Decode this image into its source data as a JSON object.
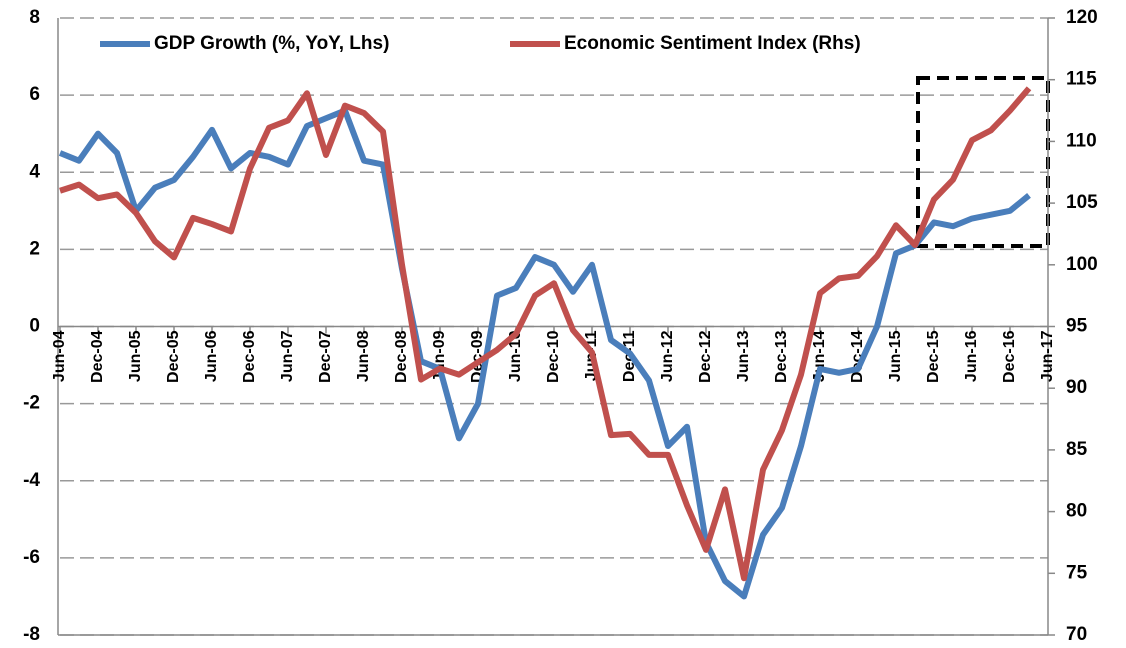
{
  "chart_data": {
    "type": "line",
    "categories": [
      "Jun-04",
      null,
      "Dec-04",
      null,
      "Jun-05",
      null,
      "Dec-05",
      null,
      "Jun-06",
      null,
      "Dec-06",
      null,
      "Jun-07",
      null,
      "Dec-07",
      null,
      "Jun-08",
      null,
      "Dec-08",
      null,
      "Jun-09",
      null,
      "Dec-09",
      null,
      "Jun-10",
      null,
      "Dec-10",
      null,
      "Jun-11",
      null,
      "Dec-11",
      null,
      "Jun-12",
      null,
      "Dec-12",
      null,
      "Jun-13",
      null,
      "Dec-13",
      null,
      "Jun-14",
      null,
      "Dec-14",
      null,
      "Jun-15",
      null,
      "Dec-15",
      null,
      "Jun-16",
      null,
      "Dec-16",
      null,
      "Jun-17"
    ],
    "series": [
      {
        "name": "GDP Growth (%, YoY, Lhs)",
        "color": "#4a7ebb",
        "values": [
          4.5,
          4.3,
          5.0,
          4.5,
          3.0,
          3.6,
          3.8,
          4.4,
          5.1,
          4.1,
          4.5,
          4.4,
          4.2,
          5.2,
          5.4,
          5.6,
          4.3,
          4.2,
          1.5,
          -0.9,
          -1.1,
          -2.9,
          -2.0,
          0.8,
          1.0,
          1.8,
          1.6,
          0.9,
          1.6,
          -0.35,
          -0.7,
          -1.4,
          -3.1,
          -2.6,
          -5.6,
          -6.6,
          -7.0,
          -5.4,
          -4.7,
          -3.1,
          -1.1,
          -1.2,
          -1.1,
          0.0,
          1.9,
          2.1,
          2.7,
          2.6,
          2.8,
          2.9,
          3.0,
          3.4,
          null
        ]
      },
      {
        "name": "Economic Sentiment Index (Rhs)",
        "color": "#c0504d",
        "axis": "y2",
        "values": [
          106.0,
          106.5,
          105.4,
          105.7,
          104.2,
          101.9,
          100.6,
          103.8,
          103.3,
          102.7,
          107.8,
          111.1,
          111.7,
          113.9,
          108.9,
          112.9,
          112.3,
          110.8,
          100.0,
          90.7,
          91.6,
          91.1,
          92.1,
          93.1,
          94.4,
          97.5,
          98.5,
          94.7,
          92.9,
          86.2,
          86.3,
          84.6,
          84.6,
          80.5,
          76.9,
          81.8,
          74.6,
          83.4,
          86.6,
          91.1,
          97.7,
          98.9,
          99.1,
          100.7,
          103.2,
          101.6,
          105.3,
          106.9,
          110.1,
          110.9,
          112.5,
          114.3,
          null
        ]
      }
    ],
    "ylim": [
      -8,
      8
    ],
    "yticks": [
      -8,
      -6,
      -4,
      -2,
      0,
      2,
      4,
      6,
      8
    ],
    "y2lim": [
      70,
      120
    ],
    "y2ticks": [
      70,
      75,
      80,
      85,
      90,
      95,
      100,
      105,
      110,
      115,
      120
    ],
    "grid": true,
    "legend": "top"
  }
}
